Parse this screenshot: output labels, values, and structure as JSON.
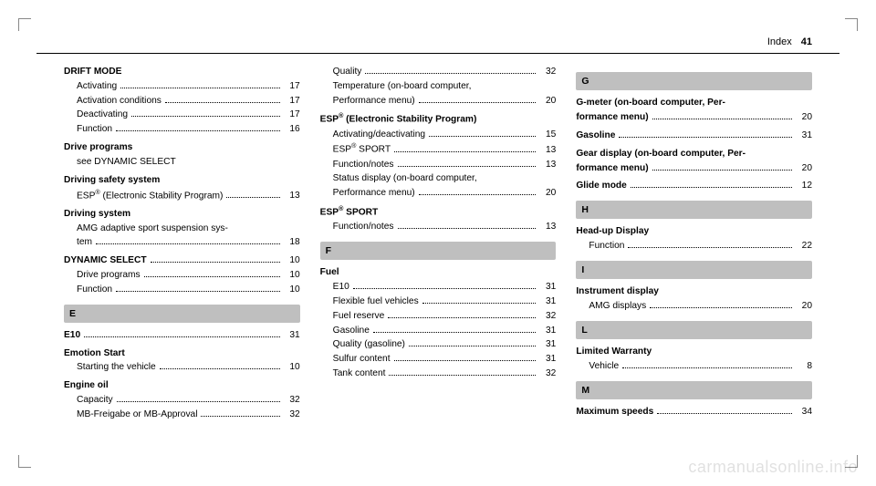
{
  "header": {
    "title": "Index",
    "page": "41"
  },
  "watermark": "carmanualsonline.info",
  "colors": {
    "section_bg": "#bfbfbf",
    "text": "#000000",
    "page_bg": "#ffffff"
  },
  "columns": [
    [
      {
        "type": "heading",
        "label": "DRIFT MODE"
      },
      {
        "type": "sub",
        "label": "Activating",
        "page": "17"
      },
      {
        "type": "sub",
        "label": "Activation conditions",
        "page": "17"
      },
      {
        "type": "sub",
        "label": "Deactivating",
        "page": "17"
      },
      {
        "type": "sub",
        "label": "Function",
        "page": "16"
      },
      {
        "type": "heading",
        "label": "Drive programs",
        "top": true
      },
      {
        "type": "subplain",
        "label": "see DYNAMIC SELECT"
      },
      {
        "type": "heading",
        "label": "Driving safety system",
        "top": true
      },
      {
        "type": "sub",
        "label": "ESP<sup>®</sup> (Electronic Stability Program)",
        "page": "13"
      },
      {
        "type": "heading",
        "label": "Driving system",
        "top": true
      },
      {
        "type": "sub",
        "label": "AMG adaptive sport suspension sys-"
      },
      {
        "type": "subcont",
        "label": "tem",
        "page": "18"
      },
      {
        "type": "bold",
        "label": "DYNAMIC SELECT",
        "page": "10",
        "top": true
      },
      {
        "type": "sub",
        "label": "Drive programs",
        "page": "10"
      },
      {
        "type": "sub",
        "label": "Function",
        "page": "10"
      },
      {
        "type": "section",
        "label": "E"
      },
      {
        "type": "bold",
        "label": "E10",
        "page": "31"
      },
      {
        "type": "heading",
        "label": "Emotion Start",
        "top": true
      },
      {
        "type": "sub",
        "label": "Starting the vehicle",
        "page": "10"
      },
      {
        "type": "heading",
        "label": "Engine oil",
        "top": true
      },
      {
        "type": "sub",
        "label": "Capacity",
        "page": "32"
      },
      {
        "type": "sub",
        "label": "MB-Freigabe or MB-Approval",
        "page": "32"
      }
    ],
    [
      {
        "type": "sub",
        "label": "Quality",
        "page": "32"
      },
      {
        "type": "sub",
        "label": "Temperature (on-board computer,"
      },
      {
        "type": "subcont",
        "label": "Performance menu)",
        "page": "20"
      },
      {
        "type": "heading",
        "label": "ESP<sup>®</sup> (Electronic Stability Program)",
        "top": true
      },
      {
        "type": "sub",
        "label": "Activating/deactivating",
        "page": "15"
      },
      {
        "type": "sub",
        "label": "ESP<sup>®</sup> SPORT",
        "page": "13"
      },
      {
        "type": "sub",
        "label": "Function/notes",
        "page": "13"
      },
      {
        "type": "sub",
        "label": "Status display (on-board computer,"
      },
      {
        "type": "subcont",
        "label": "Performance menu)",
        "page": "20"
      },
      {
        "type": "heading",
        "label": "ESP<sup>®</sup> SPORT",
        "top": true
      },
      {
        "type": "sub",
        "label": "Function/notes",
        "page": "13"
      },
      {
        "type": "section",
        "label": "F"
      },
      {
        "type": "heading",
        "label": "Fuel"
      },
      {
        "type": "sub",
        "label": "E10",
        "page": "31"
      },
      {
        "type": "sub",
        "label": "Flexible fuel vehicles",
        "page": "31"
      },
      {
        "type": "sub",
        "label": "Fuel reserve",
        "page": "32"
      },
      {
        "type": "sub",
        "label": "Gasoline",
        "page": "31"
      },
      {
        "type": "sub",
        "label": "Quality (gasoline)",
        "page": "31"
      },
      {
        "type": "sub",
        "label": "Sulfur content",
        "page": "31"
      },
      {
        "type": "sub",
        "label": "Tank content",
        "page": "32"
      }
    ],
    [
      {
        "type": "section",
        "label": "G"
      },
      {
        "type": "boldwrap",
        "label": "G-meter (on-board computer, Per-"
      },
      {
        "type": "boldcont",
        "label": "formance menu)",
        "page": "20"
      },
      {
        "type": "bold",
        "label": "Gasoline",
        "page": "31",
        "top": true
      },
      {
        "type": "boldwrap",
        "label": "Gear display (on-board computer, Per-",
        "top": true
      },
      {
        "type": "boldcont",
        "label": "formance menu)",
        "page": "20"
      },
      {
        "type": "bold",
        "label": "Glide mode",
        "page": "12",
        "top": true
      },
      {
        "type": "section",
        "label": "H"
      },
      {
        "type": "heading",
        "label": "Head-up Display"
      },
      {
        "type": "sub",
        "label": "Function",
        "page": "22"
      },
      {
        "type": "section",
        "label": "I"
      },
      {
        "type": "heading",
        "label": "Instrument display"
      },
      {
        "type": "sub",
        "label": "AMG displays",
        "page": "20"
      },
      {
        "type": "section",
        "label": "L"
      },
      {
        "type": "heading",
        "label": "Limited Warranty"
      },
      {
        "type": "sub",
        "label": "Vehicle",
        "page": "8"
      },
      {
        "type": "section",
        "label": "M"
      },
      {
        "type": "bold",
        "label": "Maximum speeds",
        "page": "34"
      }
    ]
  ]
}
